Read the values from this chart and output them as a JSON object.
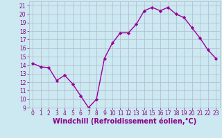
{
  "x": [
    0,
    1,
    2,
    3,
    4,
    5,
    6,
    7,
    8,
    9,
    10,
    11,
    12,
    13,
    14,
    15,
    16,
    17,
    18,
    19,
    20,
    21,
    22,
    23
  ],
  "y": [
    14.2,
    13.8,
    13.7,
    12.2,
    12.8,
    11.8,
    10.4,
    9.0,
    10.0,
    14.8,
    16.6,
    17.8,
    17.8,
    18.8,
    20.4,
    20.8,
    20.4,
    20.8,
    20.0,
    19.6,
    18.4,
    17.2,
    15.8,
    14.8
  ],
  "line_color": "#990099",
  "marker": "D",
  "marker_size": 2.2,
  "line_width": 1.0,
  "xlabel": "Windchill (Refroidissement éolien,°C)",
  "xlabel_fontsize": 7,
  "xlabel_color": "#880088",
  "xlabel_fontweight": "bold",
  "ylim": [
    9,
    21.5
  ],
  "xlim": [
    -0.5,
    23.5
  ],
  "yticks": [
    9,
    10,
    11,
    12,
    13,
    14,
    15,
    16,
    17,
    18,
    19,
    20,
    21
  ],
  "xticks": [
    0,
    1,
    2,
    3,
    4,
    5,
    6,
    7,
    8,
    9,
    10,
    11,
    12,
    13,
    14,
    15,
    16,
    17,
    18,
    19,
    20,
    21,
    22,
    23
  ],
  "tick_fontsize": 5.5,
  "tick_color": "#880088",
  "grid_color": "#b0b8d0",
  "background_color": "#cce8f0",
  "figure_background": "#cce8f0"
}
